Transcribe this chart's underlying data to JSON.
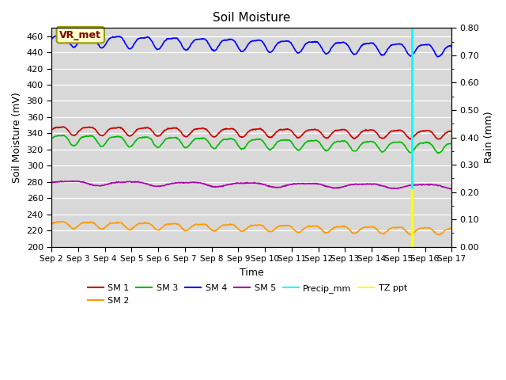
{
  "title": "Soil Moisture",
  "ylabel_left": "Soil Moisture (mV)",
  "ylabel_right": "Rain (mm)",
  "xlabel": "Time",
  "ylim_left": [
    200,
    470
  ],
  "ylim_right": [
    0.0,
    0.8
  ],
  "yticks_left": [
    200,
    220,
    240,
    260,
    280,
    300,
    320,
    340,
    360,
    380,
    400,
    420,
    440,
    460
  ],
  "background_color": "#d8d8d8",
  "annotation_text": "VR_met",
  "precip_day": 13.5,
  "tz_ppt_day": 13.5,
  "series": {
    "SM1": {
      "color": "#cc0000",
      "base": 344,
      "amplitude": 5,
      "trend": -0.32,
      "freq": 0.95
    },
    "SM2": {
      "color": "#ff9900",
      "base": 228,
      "amplitude": 4,
      "trend": -0.55,
      "freq": 0.95
    },
    "SM3": {
      "color": "#00bb00",
      "base": 333,
      "amplitude": 6,
      "trend": -0.65,
      "freq": 0.95
    },
    "SM4": {
      "color": "#0000ff",
      "base": 456,
      "amplitude": 7,
      "trend": -0.85,
      "freq": 0.95
    },
    "SM5": {
      "color": "#aa00aa",
      "base": 279,
      "amplitude": 2.5,
      "trend": -0.3,
      "freq": 0.45
    }
  },
  "precip_color": "#00ffff",
  "tz_ppt_color": "#ffff00"
}
